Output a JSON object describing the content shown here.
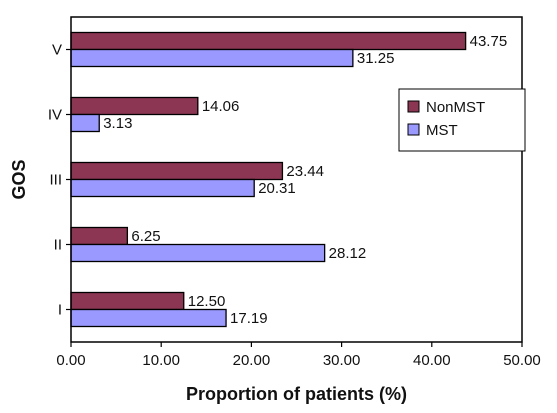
{
  "chart_data": {
    "type": "bar",
    "orientation": "horizontal",
    "categories": [
      "I",
      "II",
      "III",
      "IV",
      "V"
    ],
    "series": [
      {
        "name": "NonMST",
        "values": [
          12.5,
          6.25,
          23.44,
          14.06,
          43.75
        ],
        "labels": [
          "12.50",
          "6.25",
          "23.44",
          "14.06",
          "43.75"
        ],
        "color": "#8c3653"
      },
      {
        "name": "MST",
        "values": [
          17.19,
          28.12,
          20.31,
          3.13,
          31.25
        ],
        "labels": [
          "17.19",
          "28.12",
          "20.31",
          "3.13",
          "31.25"
        ],
        "color": "#9999ff"
      }
    ],
    "xlabel": "Proportion of patients (%)",
    "ylabel": "GOS",
    "xlim": [
      0,
      50
    ],
    "xticks": [
      0,
      10,
      20,
      30,
      40,
      50
    ],
    "xtick_labels": [
      "0.00",
      "10.00",
      "20.00",
      "30.00",
      "40.00",
      "50.00"
    ],
    "grid": false,
    "legend_position": "right",
    "bar_outline_color": "#000000"
  }
}
